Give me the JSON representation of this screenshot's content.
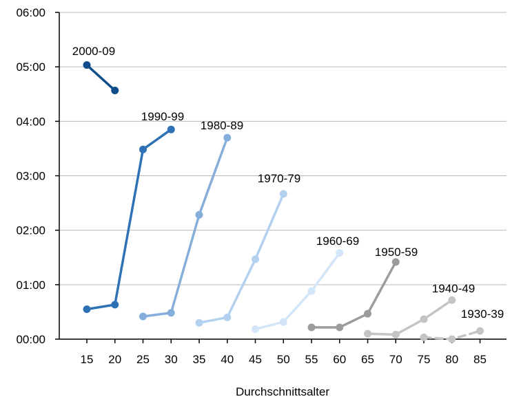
{
  "chart_data": {
    "type": "line",
    "xlabel": "Durchschnittsalter",
    "ylabel": "",
    "x_ticks": [
      15,
      20,
      25,
      30,
      35,
      40,
      45,
      50,
      55,
      60,
      65,
      70,
      75,
      80,
      85
    ],
    "y_ticks": [
      "00:00",
      "01:00",
      "02:00",
      "03:00",
      "04:00",
      "05:00",
      "06:00"
    ],
    "ylim_minutes": [
      0,
      360
    ],
    "xlim": [
      10,
      88
    ],
    "grid": "horizontal",
    "series": [
      {
        "name": "2000-09",
        "color": "#0f4d8a",
        "dashed": false,
        "points": [
          [
            15,
            302
          ],
          [
            20,
            274
          ]
        ]
      },
      {
        "name": "1990-99",
        "color": "#2e72b5",
        "dashed": false,
        "points": [
          [
            15,
            33
          ],
          [
            20,
            38
          ],
          [
            25,
            209
          ],
          [
            30,
            231
          ]
        ]
      },
      {
        "name": "1980-89",
        "color": "#86aedb",
        "dashed": false,
        "points": [
          [
            25,
            25
          ],
          [
            30,
            29
          ],
          [
            35,
            137
          ],
          [
            40,
            222
          ]
        ]
      },
      {
        "name": "1970-79",
        "color": "#b3d0ef",
        "dashed": false,
        "points": [
          [
            35,
            18
          ],
          [
            40,
            24
          ],
          [
            45,
            88
          ],
          [
            50,
            160
          ]
        ]
      },
      {
        "name": "1960-69",
        "color": "#d3e5f8",
        "dashed": false,
        "points": [
          [
            45,
            11
          ],
          [
            50,
            19
          ],
          [
            55,
            53
          ],
          [
            60,
            95
          ]
        ]
      },
      {
        "name": "1950-59",
        "color": "#9c9c9c",
        "dashed": false,
        "points": [
          [
            55,
            13
          ],
          [
            60,
            13
          ],
          [
            65,
            28
          ],
          [
            70,
            85
          ]
        ]
      },
      {
        "name": "1940-49",
        "color": "#c4c4c4",
        "dashed": false,
        "points": [
          [
            65,
            6
          ],
          [
            70,
            5
          ],
          [
            75,
            22
          ],
          [
            80,
            43
          ]
        ]
      },
      {
        "name": "1930-39",
        "color": "#c4c4c4",
        "dashed": true,
        "points": [
          [
            75,
            2
          ],
          [
            80,
            0
          ],
          [
            85,
            9
          ]
        ]
      }
    ]
  }
}
